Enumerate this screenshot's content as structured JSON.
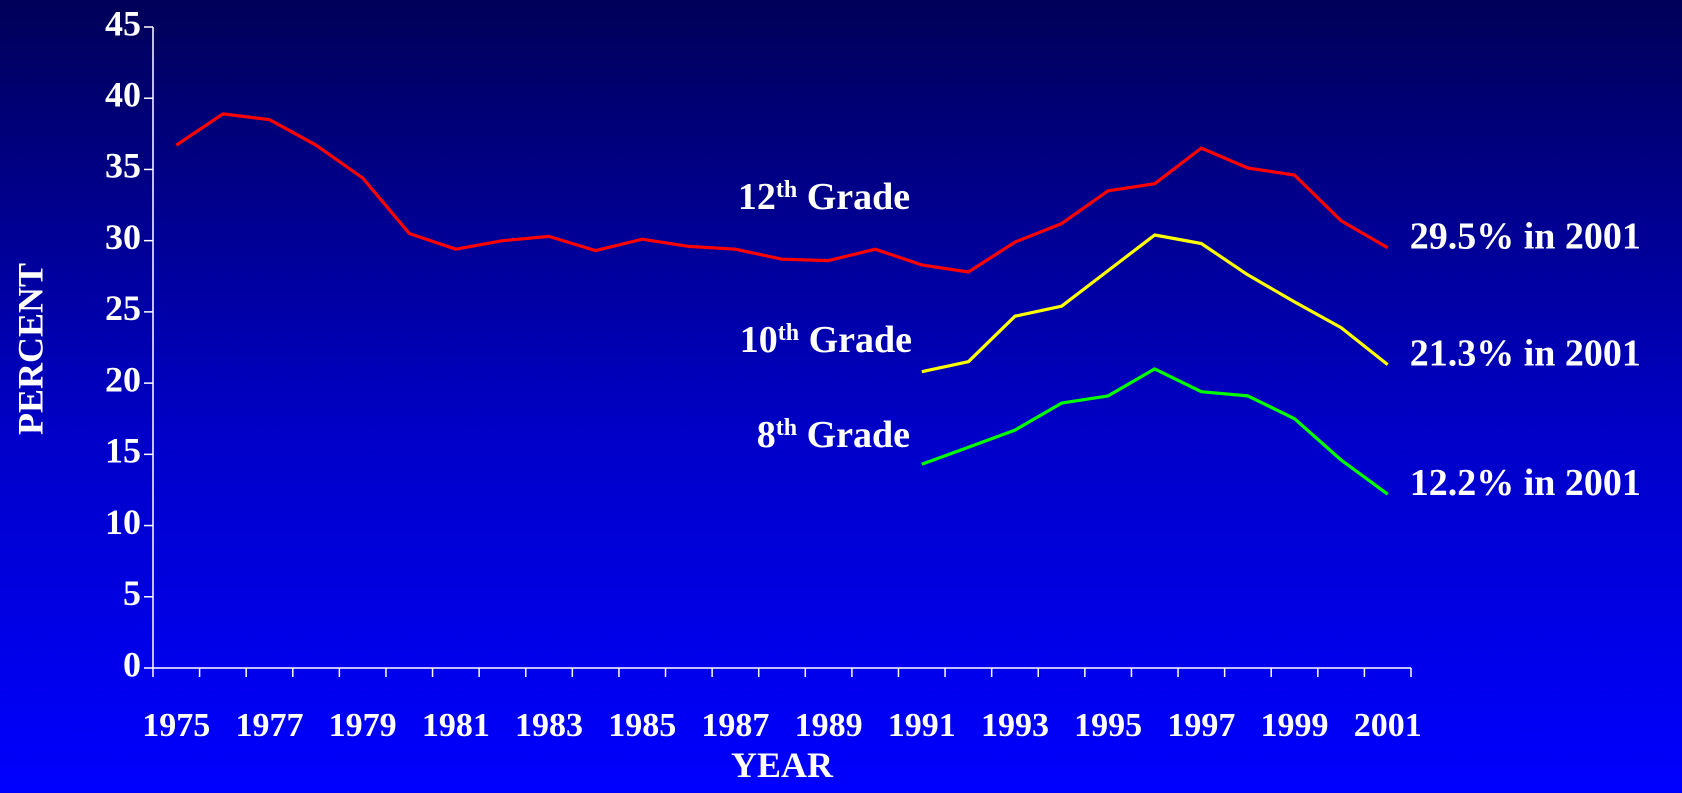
{
  "chart_data": {
    "type": "line",
    "y_label": "PERCENT",
    "x_label": "YEAR",
    "categories": [
      "1975",
      null,
      "1977",
      null,
      "1979",
      null,
      "1981",
      null,
      "1983",
      null,
      "1985",
      null,
      "1987",
      null,
      "1989",
      null,
      "1991",
      null,
      "1993",
      null,
      "1995",
      null,
      "1997",
      null,
      "1999",
      null,
      "2001"
    ],
    "ylim": [
      0,
      45
    ],
    "yticks": [
      0,
      5,
      10,
      15,
      20,
      25,
      30,
      35,
      40,
      45
    ],
    "grid": false,
    "series": [
      {
        "name": "12th Grade",
        "color": "#ff0000",
        "annotation": "29.5% in 2001",
        "values": [
          36.7,
          38.9,
          38.5,
          36.7,
          34.4,
          30.5,
          29.4,
          30.0,
          30.3,
          29.3,
          30.1,
          29.6,
          29.4,
          28.7,
          28.6,
          29.4,
          28.3,
          27.8,
          29.9,
          31.2,
          33.5,
          34.0,
          36.5,
          35.1,
          34.6,
          31.4,
          29.5
        ]
      },
      {
        "name": "10th Grade",
        "color": "#ffff00",
        "annotation": "21.3% in 2001",
        "values": [
          null,
          null,
          null,
          null,
          null,
          null,
          null,
          null,
          null,
          null,
          null,
          null,
          null,
          null,
          null,
          null,
          20.8,
          21.5,
          24.7,
          25.4,
          27.9,
          30.4,
          29.8,
          27.6,
          25.7,
          23.9,
          21.3
        ]
      },
      {
        "name": "8th Grade",
        "color": "#00ff00",
        "annotation": "12.2% in 2001",
        "values": [
          null,
          null,
          null,
          null,
          null,
          null,
          null,
          null,
          null,
          null,
          null,
          null,
          null,
          null,
          null,
          null,
          14.3,
          15.5,
          16.7,
          18.6,
          19.1,
          21.0,
          19.4,
          19.1,
          17.5,
          14.6,
          12.2
        ]
      }
    ]
  }
}
